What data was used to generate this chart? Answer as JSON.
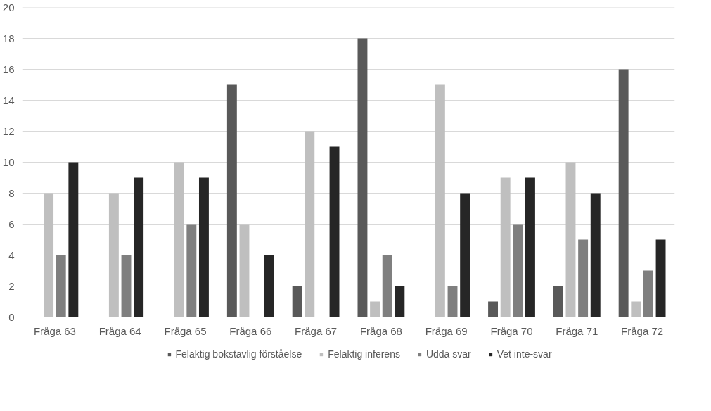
{
  "chart_data": {
    "type": "bar",
    "categories": [
      "Fråga 63",
      "Fråga 64",
      "Fråga 65",
      "Fråga 66",
      "Fråga 67",
      "Fråga 68",
      "Fråga 69",
      "Fråga 70",
      "Fråga 71",
      "Fråga 72"
    ],
    "series": [
      {
        "name": "Felaktig bokstavlig förståelse",
        "color": "#595959",
        "values": [
          0,
          0,
          0,
          15,
          2,
          18,
          0,
          1,
          2,
          16
        ]
      },
      {
        "name": "Felaktig inferens",
        "color": "#bfbfbf",
        "values": [
          8,
          8,
          10,
          6,
          12,
          1,
          15,
          9,
          10,
          1
        ]
      },
      {
        "name": "Udda svar",
        "color": "#7f7f7f",
        "values": [
          4,
          4,
          6,
          0,
          0,
          4,
          2,
          6,
          5,
          3
        ]
      },
      {
        "name": "Vet inte-svar",
        "color": "#262626",
        "values": [
          10,
          9,
          9,
          4,
          11,
          2,
          8,
          9,
          8,
          5
        ]
      }
    ],
    "ylim": [
      0,
      20
    ],
    "yticks": [
      0,
      2,
      4,
      6,
      8,
      10,
      12,
      14,
      16,
      18,
      20
    ],
    "grid": "y",
    "legend": "bottom"
  }
}
